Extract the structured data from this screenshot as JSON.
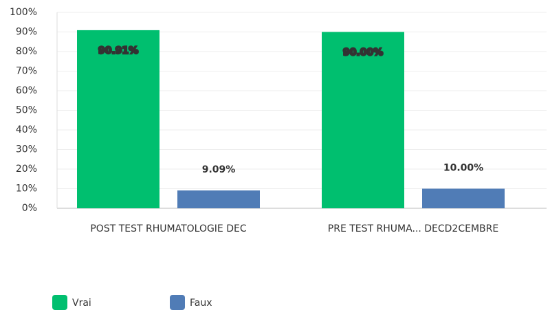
{
  "chart_data": {
    "type": "bar",
    "categories": [
      "POST TEST RHUMATOLOGIE DEC",
      "PRE TEST RHUMA... DECD2CEMBRE"
    ],
    "series": [
      {
        "name": "Vrai",
        "color": "#00bf6f",
        "values": [
          90.91,
          90.0
        ],
        "value_labels": [
          "90.91%",
          "90.00%"
        ]
      },
      {
        "name": "Faux",
        "color": "#507cb6",
        "values": [
          9.09,
          10.0
        ],
        "value_labels": [
          "9.09%",
          "10.00%"
        ]
      }
    ],
    "ylim": [
      0,
      100
    ],
    "yticks": [
      {
        "value": 0,
        "label": "0%"
      },
      {
        "value": 10,
        "label": "10%"
      },
      {
        "value": 20,
        "label": "20%"
      },
      {
        "value": 30,
        "label": "30%"
      },
      {
        "value": 40,
        "label": "40%"
      },
      {
        "value": 50,
        "label": "50%"
      },
      {
        "value": 60,
        "label": "60%"
      },
      {
        "value": 70,
        "label": "70%"
      },
      {
        "value": 80,
        "label": "80%"
      },
      {
        "value": 90,
        "label": "90%"
      },
      {
        "value": 100,
        "label": "100%"
      }
    ],
    "grid": true,
    "legend": "bottom-left"
  }
}
